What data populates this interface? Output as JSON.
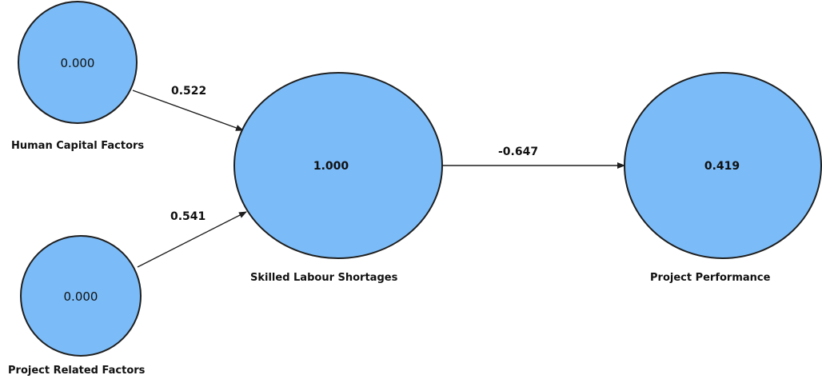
{
  "colors": {
    "node_fill": "#7bbcf8",
    "stroke": "#1f1f1f"
  },
  "nodes": {
    "human_capital": {
      "label": "Human Capital Factors",
      "value": "0.000"
    },
    "project_related": {
      "label": "Project Related Factors",
      "value": "0.000"
    },
    "skilled_labour": {
      "label": "Skilled Labour Shortages",
      "value": "1.000"
    },
    "project_performance": {
      "label": "Project Performance",
      "value": "0.419"
    }
  },
  "edges": {
    "hc_to_sl": {
      "from": "Human Capital Factors",
      "to": "Skilled Labour Shortages",
      "label": "0.522"
    },
    "pr_to_sl": {
      "from": "Project Related Factors",
      "to": "Skilled Labour Shortages",
      "label": "0.541"
    },
    "sl_to_pp": {
      "from": "Skilled Labour Shortages",
      "to": "Project Performance",
      "label": "-0.647"
    }
  }
}
